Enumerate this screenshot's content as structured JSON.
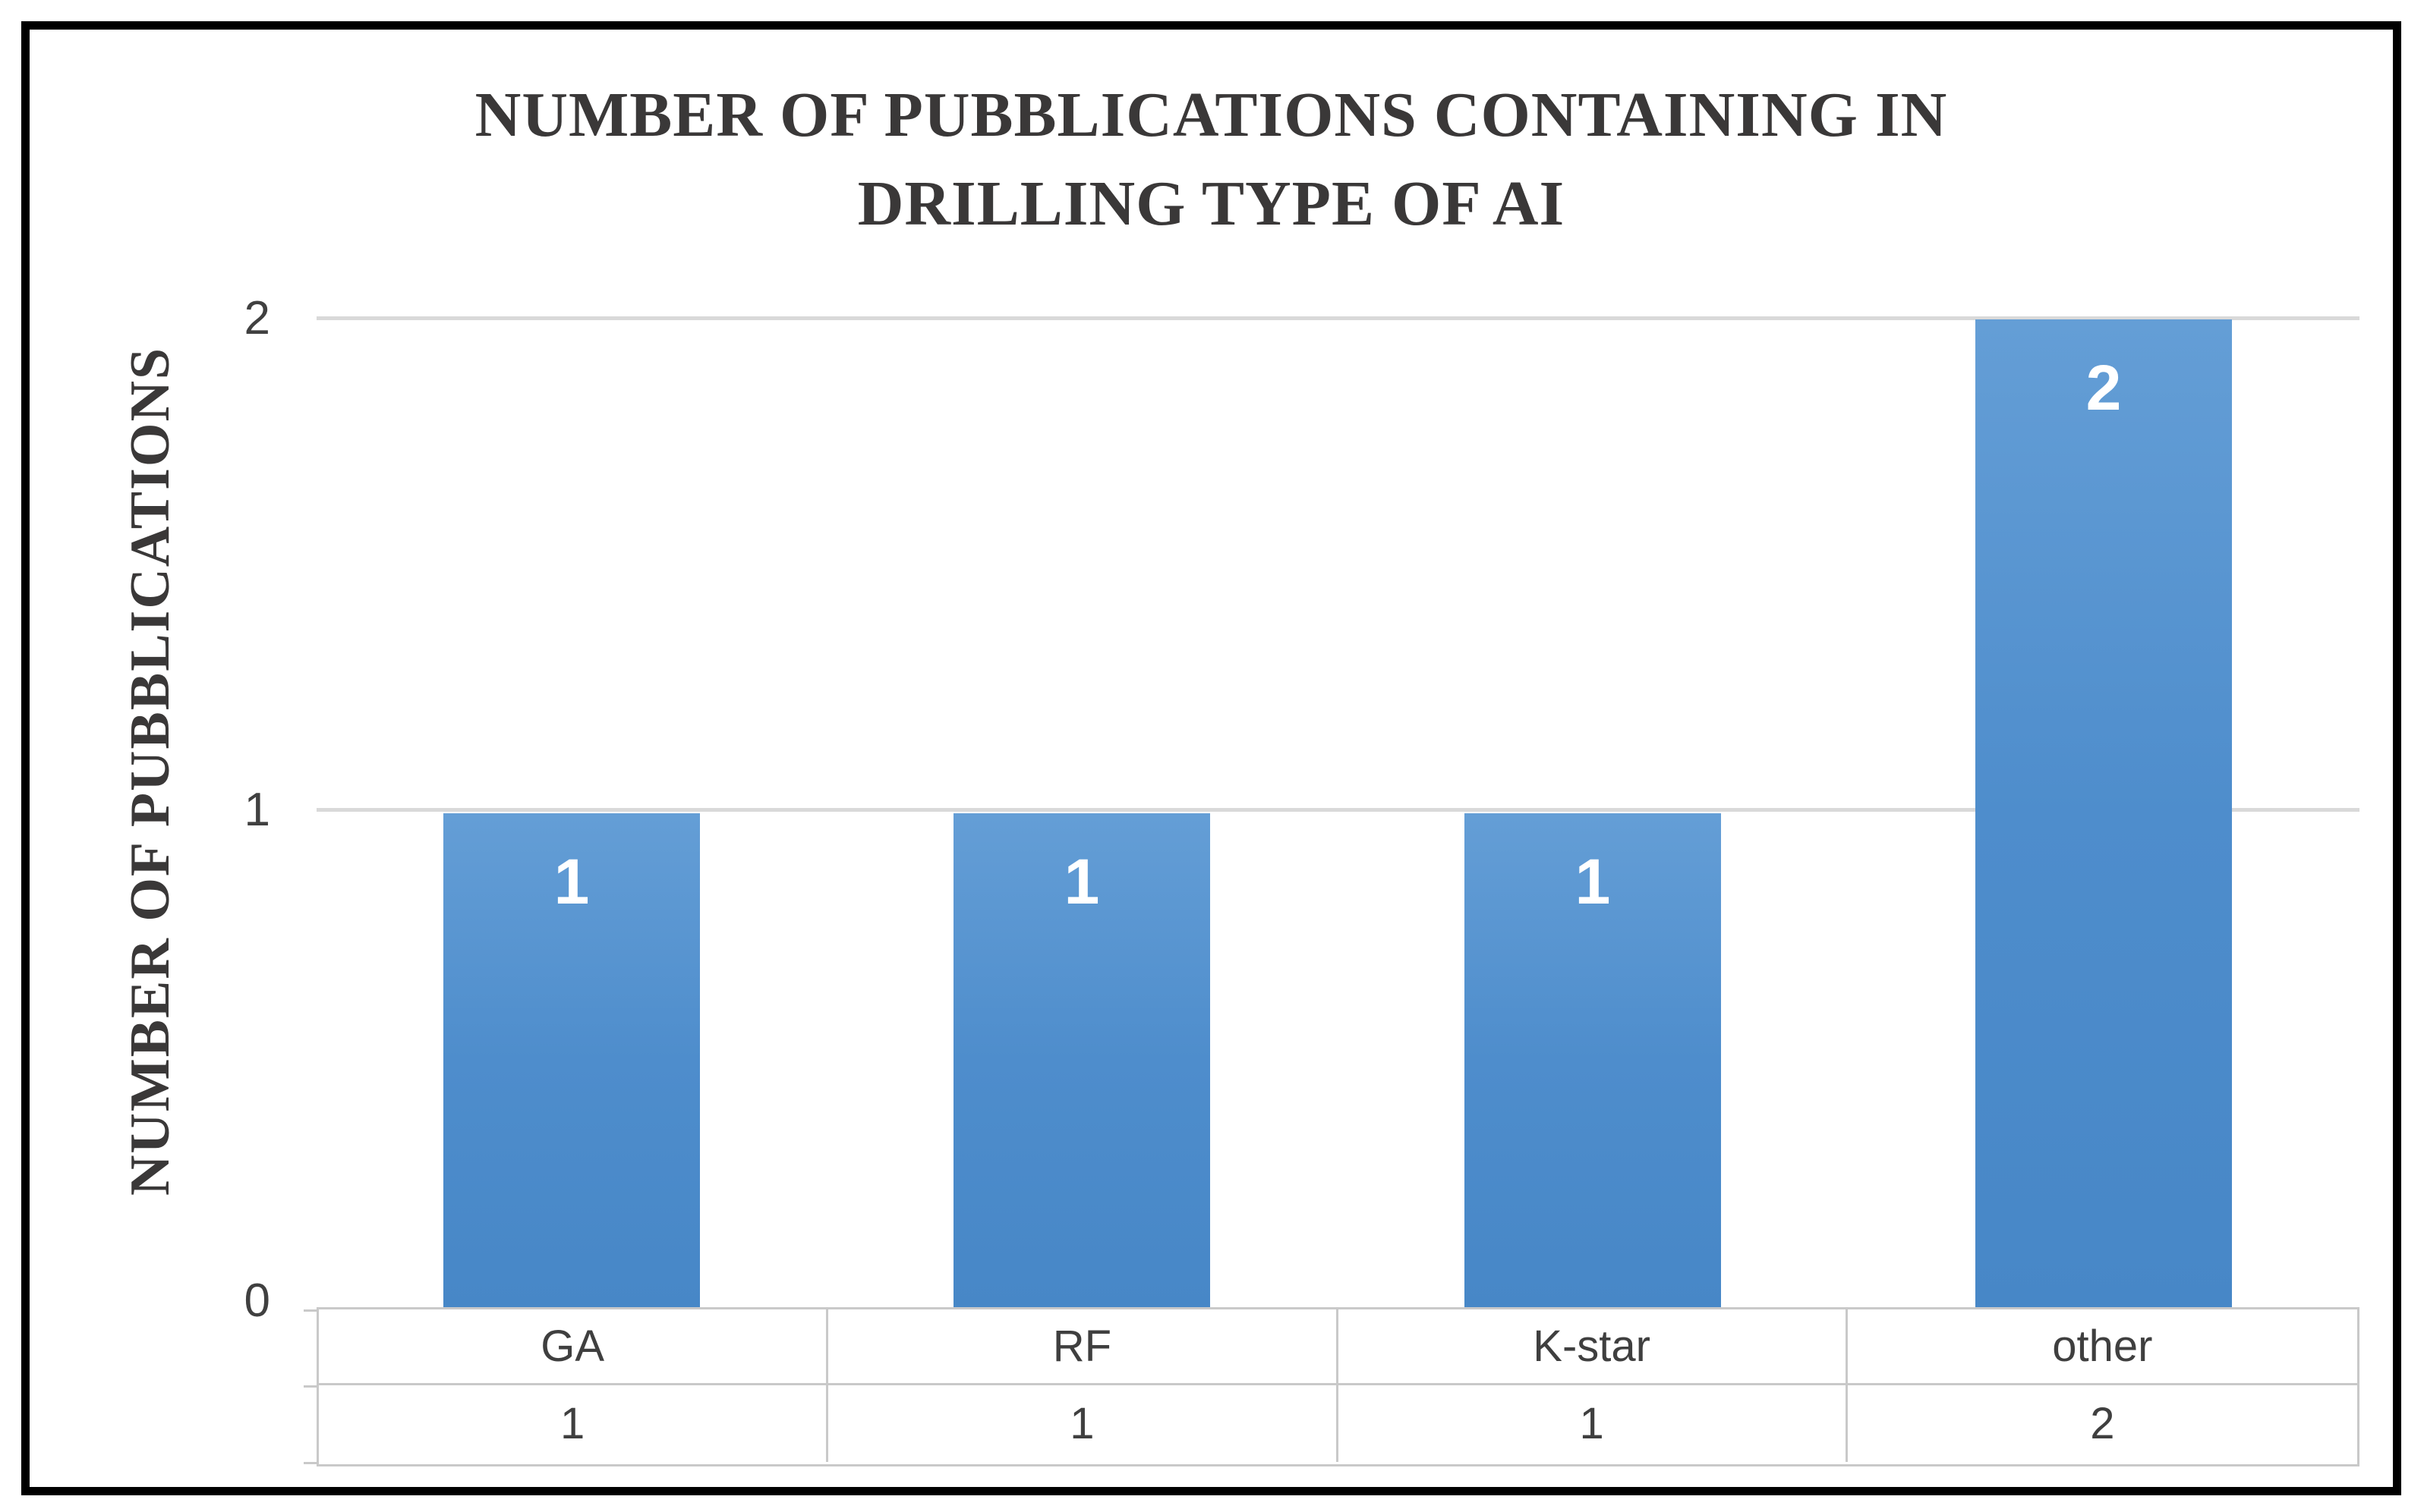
{
  "chart_data": {
    "type": "bar",
    "title": "NUMBER OF PUBBLICATIONS CONTAINING IN DRILLING TYPE OF AI",
    "title_lines": [
      "NUMBER OF PUBBLICATIONS CONTAINING IN",
      "DRILLING TYPE OF AI"
    ],
    "ylabel": "NUMBER OF PUBBLICATIONS",
    "xlabel": "",
    "categories": [
      "GA",
      "RF",
      "K-star",
      "other"
    ],
    "values": [
      1,
      1,
      1,
      2
    ],
    "data_labels": [
      "1",
      "1",
      "1",
      "2"
    ],
    "yticks": [
      "2",
      "1",
      "0"
    ],
    "ylim": [
      0,
      2
    ],
    "grid": true,
    "legend": false,
    "data_table_shown": true,
    "colors": {
      "bar_top": "#649ed6",
      "bar_mid": "#4e8dcc",
      "bar_bottom": "#4787c7",
      "bar_label": "#ffffff",
      "gridline": "#d9d9d9",
      "table_border": "#c9c9c9",
      "text": "#404040",
      "title_text": "#3a3838",
      "frame_border": "#000000"
    }
  }
}
